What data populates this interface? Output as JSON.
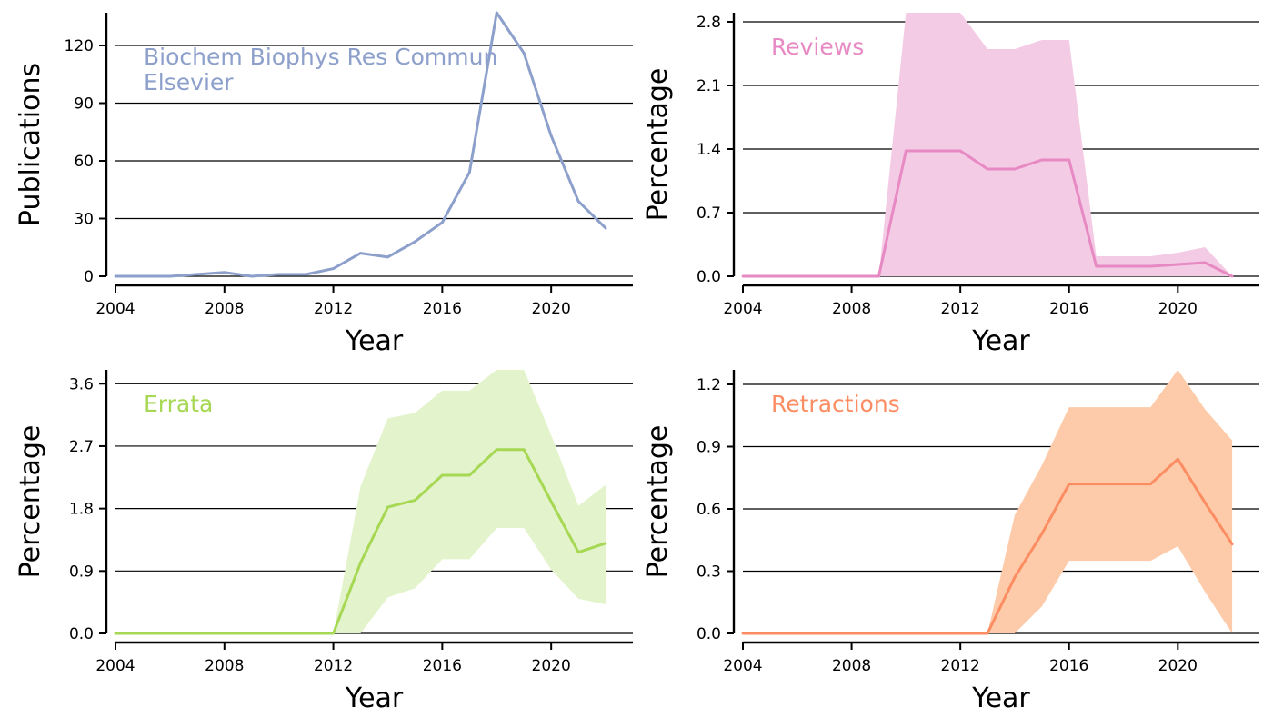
{
  "chart_data": [
    {
      "type": "line",
      "panel": "publications",
      "annotation": [
        "Biochem Biophys Res Commun",
        "Elsevier"
      ],
      "xlabel": "Year",
      "ylabel": "Publications",
      "xlim": [
        2004,
        2023
      ],
      "ylim": [
        0,
        137
      ],
      "xticks": [
        "2004",
        "2008",
        "2012",
        "2016",
        "2020"
      ],
      "yticks": [
        "0",
        "30",
        "60",
        "90",
        "120"
      ],
      "grid": "horizontal",
      "color": "#8da0cb",
      "series": [
        {
          "x": [
            2004,
            2005,
            2006,
            2007,
            2008,
            2009,
            2010,
            2011,
            2012,
            2013,
            2014,
            2015,
            2016,
            2017,
            2018,
            2019,
            2020,
            2021,
            2022
          ],
          "values": [
            0,
            0,
            0,
            1,
            2,
            0,
            1,
            1,
            4,
            12,
            10,
            18,
            28,
            54,
            137,
            116,
            73,
            39,
            25
          ]
        }
      ]
    },
    {
      "type": "area",
      "panel": "reviews",
      "annotation": [
        "Reviews"
      ],
      "xlabel": "Year",
      "ylabel": "Percentage",
      "xlim": [
        2004,
        2023
      ],
      "ylim": [
        0,
        2.9
      ],
      "xticks": [
        "2004",
        "2008",
        "2012",
        "2016",
        "2020"
      ],
      "yticks": [
        "0.0",
        "0.7",
        "1.4",
        "2.1",
        "2.8"
      ],
      "grid": "horizontal",
      "color": "#e78ac3",
      "band_color": "#f4cbe5",
      "series": [
        {
          "x": [
            2004,
            2005,
            2006,
            2007,
            2008,
            2009,
            2010,
            2011,
            2012,
            2013,
            2014,
            2015,
            2016,
            2017,
            2018,
            2019,
            2020,
            2021,
            2022
          ],
          "values": [
            0,
            0,
            0,
            0,
            0,
            0,
            1.38,
            1.38,
            1.38,
            1.18,
            1.18,
            1.28,
            1.28,
            0.11,
            0.11,
            0.11,
            0.13,
            0.15,
            0
          ],
          "lower": [
            0,
            0,
            0,
            0,
            0,
            0,
            0,
            0,
            0,
            0,
            0,
            0,
            0,
            0,
            0,
            0,
            0,
            0,
            0
          ],
          "upper": [
            0,
            0,
            0,
            0,
            0,
            0,
            2.9,
            2.9,
            2.9,
            2.5,
            2.5,
            2.6,
            2.6,
            0.22,
            0.22,
            0.22,
            0.26,
            0.32,
            0
          ]
        }
      ]
    },
    {
      "type": "area",
      "panel": "errata",
      "annotation": [
        "Errata"
      ],
      "xlabel": "Year",
      "ylabel": "Percentage",
      "xlim": [
        2004,
        2023
      ],
      "ylim": [
        0,
        3.8
      ],
      "xticks": [
        "2004",
        "2008",
        "2012",
        "2016",
        "2020"
      ],
      "yticks": [
        "0.0",
        "0.9",
        "1.8",
        "2.7",
        "3.6"
      ],
      "grid": "horizontal",
      "color": "#a6d854",
      "band_color": "#e3f3cb",
      "series": [
        {
          "x": [
            2004,
            2005,
            2006,
            2007,
            2008,
            2009,
            2010,
            2011,
            2012,
            2013,
            2014,
            2015,
            2016,
            2017,
            2018,
            2019,
            2020,
            2021,
            2022
          ],
          "values": [
            0,
            0,
            0,
            0,
            0,
            0,
            0,
            0,
            0,
            1.02,
            1.82,
            1.92,
            2.28,
            2.28,
            2.65,
            2.65,
            1.9,
            1.17,
            1.3
          ],
          "lower": [
            0,
            0,
            0,
            0,
            0,
            0,
            0,
            0,
            0,
            0,
            0.52,
            0.65,
            1.07,
            1.07,
            1.52,
            1.52,
            0.92,
            0.5,
            0.42
          ],
          "upper": [
            0,
            0,
            0,
            0,
            0,
            0,
            0,
            0,
            0,
            2.12,
            3.1,
            3.18,
            3.5,
            3.5,
            3.8,
            3.8,
            2.86,
            1.84,
            2.14
          ]
        }
      ]
    },
    {
      "type": "area",
      "panel": "retractions",
      "annotation": [
        "Retractions"
      ],
      "xlabel": "Year",
      "ylabel": "Percentage",
      "xlim": [
        2004,
        2023
      ],
      "ylim": [
        0,
        1.27
      ],
      "xticks": [
        "2004",
        "2008",
        "2012",
        "2016",
        "2020"
      ],
      "yticks": [
        "0.0",
        "0.3",
        "0.6",
        "0.9",
        "1.2"
      ],
      "grid": "horizontal",
      "color": "#fc8d62",
      "band_color": "#fdcba9",
      "series": [
        {
          "x": [
            2004,
            2005,
            2006,
            2007,
            2008,
            2009,
            2010,
            2011,
            2012,
            2013,
            2014,
            2015,
            2016,
            2017,
            2018,
            2019,
            2020,
            2021,
            2022
          ],
          "values": [
            0,
            0,
            0,
            0,
            0,
            0,
            0,
            0,
            0,
            0,
            0.27,
            0.48,
            0.72,
            0.72,
            0.72,
            0.72,
            0.84,
            0.63,
            0.43
          ],
          "lower": [
            0,
            0,
            0,
            0,
            0,
            0,
            0,
            0,
            0,
            0,
            0,
            0.13,
            0.35,
            0.35,
            0.35,
            0.35,
            0.42,
            0.2,
            0
          ],
          "upper": [
            0,
            0,
            0,
            0,
            0,
            0,
            0,
            0,
            0,
            0,
            0.57,
            0.81,
            1.09,
            1.09,
            1.09,
            1.09,
            1.27,
            1.08,
            0.93
          ]
        }
      ]
    }
  ]
}
